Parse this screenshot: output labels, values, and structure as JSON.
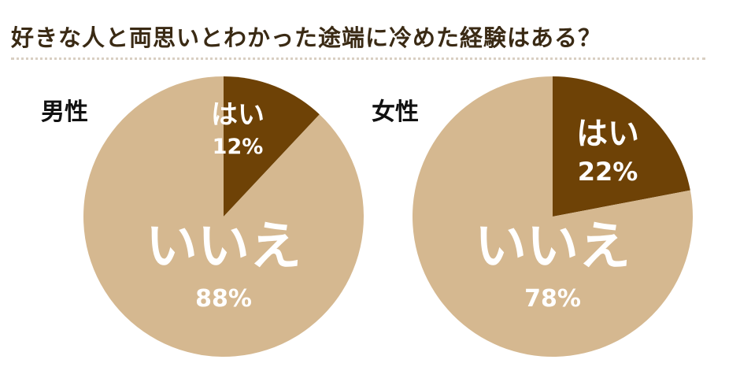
{
  "title": "好きな人と両思いとわかった途端に冷めた経験はある？",
  "colors": {
    "yes": "#6e4206",
    "no": "#d5b890",
    "label_text": "#ffffff",
    "title_text": "#3a2a14",
    "panel_text": "#111111",
    "rule": "#d9cfc2"
  },
  "chart_data": [
    {
      "type": "pie",
      "title": "男性",
      "slices": [
        {
          "label": "はい",
          "value": 12,
          "value_label": "12%",
          "color": "#6e4206"
        },
        {
          "label": "いいえ",
          "value": 88,
          "value_label": "88%",
          "color": "#d5b890"
        }
      ],
      "start": "top",
      "direction": "clockwise"
    },
    {
      "type": "pie",
      "title": "女性",
      "slices": [
        {
          "label": "はい",
          "value": 22,
          "value_label": "22%",
          "color": "#6e4206"
        },
        {
          "label": "いいえ",
          "value": 78,
          "value_label": "78%",
          "color": "#d5b890"
        }
      ],
      "start": "top",
      "direction": "clockwise"
    }
  ]
}
